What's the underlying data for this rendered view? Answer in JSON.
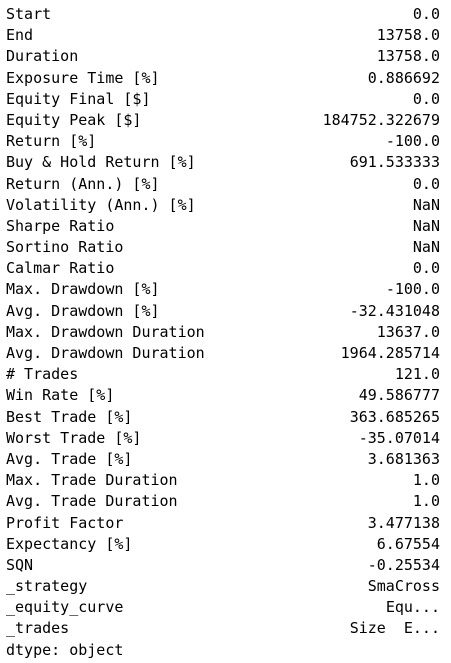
{
  "stats": [
    {
      "key": "Start",
      "value": "0.0"
    },
    {
      "key": "End",
      "value": "13758.0"
    },
    {
      "key": "Duration",
      "value": "13758.0"
    },
    {
      "key": "Exposure Time [%]",
      "value": "0.886692"
    },
    {
      "key": "Equity Final [$]",
      "value": "0.0"
    },
    {
      "key": "Equity Peak [$]",
      "value": "184752.322679"
    },
    {
      "key": "Return [%]",
      "value": "-100.0"
    },
    {
      "key": "Buy & Hold Return [%]",
      "value": "691.533333"
    },
    {
      "key": "Return (Ann.) [%]",
      "value": "0.0"
    },
    {
      "key": "Volatility (Ann.) [%]",
      "value": "NaN"
    },
    {
      "key": "Sharpe Ratio",
      "value": "NaN"
    },
    {
      "key": "Sortino Ratio",
      "value": "NaN"
    },
    {
      "key": "Calmar Ratio",
      "value": "0.0"
    },
    {
      "key": "Max. Drawdown [%]",
      "value": "-100.0"
    },
    {
      "key": "Avg. Drawdown [%]",
      "value": "-32.431048"
    },
    {
      "key": "Max. Drawdown Duration",
      "value": "13637.0"
    },
    {
      "key": "Avg. Drawdown Duration",
      "value": "1964.285714"
    },
    {
      "key": "# Trades",
      "value": "121.0"
    },
    {
      "key": "Win Rate [%]",
      "value": "49.586777"
    },
    {
      "key": "Best Trade [%]",
      "value": "363.685265"
    },
    {
      "key": "Worst Trade [%]",
      "value": "-35.07014"
    },
    {
      "key": "Avg. Trade [%]",
      "value": "3.681363"
    },
    {
      "key": "Max. Trade Duration",
      "value": "1.0"
    },
    {
      "key": "Avg. Trade Duration",
      "value": "1.0"
    },
    {
      "key": "Profit Factor",
      "value": "3.477138"
    },
    {
      "key": "Expectancy [%]",
      "value": "6.67554"
    },
    {
      "key": "SQN",
      "value": "-0.25534"
    },
    {
      "key": "_strategy",
      "value": "SmaCross"
    },
    {
      "key": "_equity_curve",
      "value": "Equ..."
    },
    {
      "key": "_trades",
      "value": "Size  E..."
    }
  ],
  "dtype_line": "dtype: object"
}
